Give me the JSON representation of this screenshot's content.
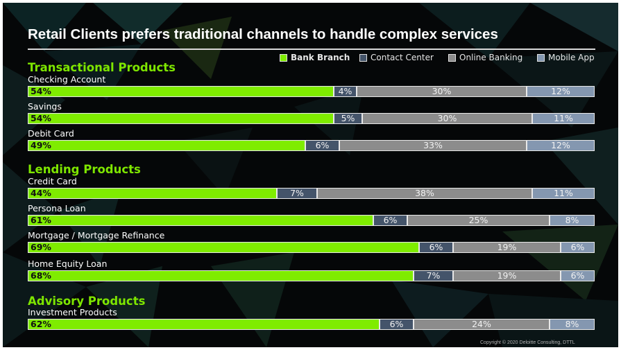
{
  "title": "Retail Clients prefers traditional channels to handle complex services",
  "copyright": "Copyright © 2020 Deloitte Consulting, DTTL",
  "colors": {
    "bank_branch": "#7fec00",
    "contact_center": "#44546a",
    "online_banking": "#8c8c8c",
    "mobile_app": "#8497b0"
  },
  "chart_data": {
    "type": "bar",
    "orientation": "horizontal",
    "stacked": true,
    "unit": "%",
    "legend": [
      {
        "name": "Bank Branch",
        "key": "bank_branch"
      },
      {
        "name": "Contact Center",
        "key": "contact_center"
      },
      {
        "name": "Online Banking",
        "key": "online_banking"
      },
      {
        "name": "Mobile App",
        "key": "mobile_app"
      }
    ],
    "legend_position": "top-right",
    "groups": [
      {
        "name": "Transactional Products",
        "items": [
          {
            "name": "Checking Account",
            "values": [
              54,
              4,
              30,
              12
            ]
          },
          {
            "name": "Savings",
            "values": [
              54,
              5,
              30,
              11
            ]
          },
          {
            "name": "Debit Card",
            "values": [
              49,
              6,
              33,
              12
            ]
          }
        ]
      },
      {
        "name": "Lending Products",
        "items": [
          {
            "name": "Credit Card",
            "values": [
              44,
              7,
              38,
              11
            ]
          },
          {
            "name": "Persona Loan",
            "values": [
              61,
              6,
              25,
              8
            ]
          },
          {
            "name": "Mortgage / Mortgage Refinance",
            "values": [
              69,
              6,
              19,
              6
            ]
          },
          {
            "name": "Home Equity Loan",
            "values": [
              68,
              7,
              19,
              6
            ]
          }
        ]
      },
      {
        "name": "Advisory Products",
        "items": [
          {
            "name": "Investment Products",
            "values": [
              62,
              6,
              24,
              8
            ]
          }
        ]
      }
    ]
  }
}
